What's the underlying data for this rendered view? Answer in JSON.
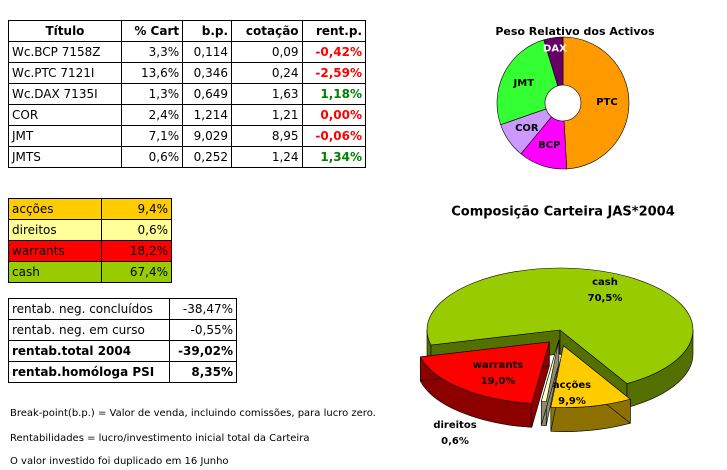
{
  "tables": {
    "assets": {
      "header": [
        "Título",
        "% Cart",
        "b.p.",
        "cotação",
        "rent.p."
      ],
      "rows": [
        [
          "Wc.BCP 7158Z",
          "3,3%",
          "0,114",
          "0,09",
          "-0,42%"
        ],
        [
          "Wc.PTC 7121I",
          "13,6%",
          "0,346",
          "0,24",
          "-2,59%"
        ],
        [
          "Wc.DAX 7135I",
          "1,3%",
          "0,649",
          "1,63",
          "1,18%"
        ],
        [
          "COR",
          "2,4%",
          "1,214",
          "1,21",
          "0,00%"
        ],
        [
          "JMT",
          "7,1%",
          "9,029",
          "8,95",
          "-0,06%"
        ],
        [
          "JMTS",
          "0,6%",
          "0,252",
          "1,24",
          "1,34%"
        ]
      ]
    },
    "classes": {
      "rows": [
        {
          "label": "acções",
          "value": "9,4%",
          "color": "#ffcc00"
        },
        {
          "label": "direitos",
          "value": "0,6%",
          "color": "#ffff99"
        },
        {
          "label": "warrants",
          "value": "18,2%",
          "color": "#ff0000"
        },
        {
          "label": "cash",
          "value": "67,4%",
          "color": "#99cc00"
        }
      ]
    },
    "returns": {
      "rows": [
        [
          "rentab. neg. concluídos",
          "-38,47%"
        ],
        [
          "rentab. neg. em curso",
          "-0,55%"
        ],
        [
          "rentab.total 2004",
          "-39,02%"
        ],
        [
          "rentab.homóloga PSI",
          "8,35%"
        ]
      ]
    }
  },
  "notes": [
    "Break-point(b.p.) = Valor de venda, incluindo comissões, para lucro zero.",
    "Rentabilidades = lucro/investimento inicial total da Carteira",
    "O valor investido foi duplicado em 16 Junho"
  ],
  "chart_data": [
    {
      "type": "donut",
      "title": "Peso Relativo dos Activos",
      "categories": [
        "PTC",
        "BCP",
        "COR",
        "JMT",
        "DAX"
      ],
      "values": [
        13.6,
        3.3,
        2.4,
        7.1,
        1.3
      ],
      "colors": [
        "#ff9900",
        "#ff00ff",
        "#cc99ff",
        "#33ff33",
        "#660066"
      ]
    },
    {
      "type": "pie3d",
      "title": "Composição Carteira JAS*2004",
      "categories": [
        "cash",
        "acções",
        "direitos",
        "warrants"
      ],
      "values": [
        70.5,
        9.9,
        0.6,
        19.0
      ],
      "value_labels": [
        "70,5%",
        "9,9%",
        "0,6%",
        "19,0%"
      ],
      "colors": [
        "#99cc00",
        "#ffcc00",
        "#ffffcc",
        "#ff0000"
      ]
    }
  ]
}
